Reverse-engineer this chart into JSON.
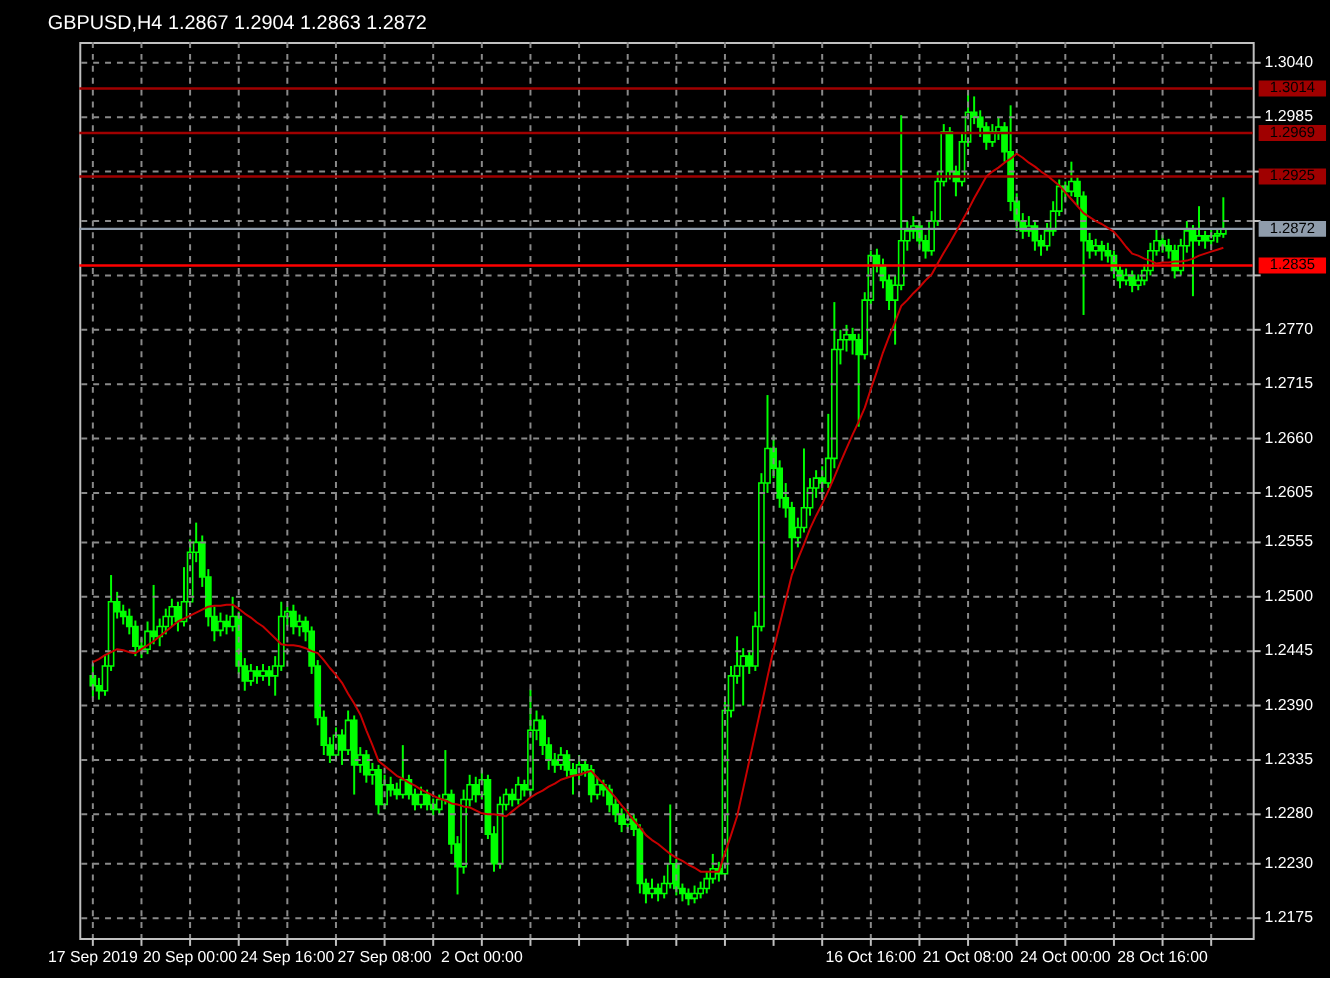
{
  "chart_data": {
    "type": "candlestick",
    "title": "GBPUSD,H4  1.2867 1.2904 1.2863 1.2872",
    "color": "#00ff00",
    "grid": true,
    "categories": [
      "17 Sep 2019",
      null,
      null,
      null,
      null,
      null,
      null,
      null,
      null,
      null,
      null,
      null,
      null,
      null,
      null,
      null,
      "20 Sep 00:00",
      null,
      null,
      null,
      null,
      null,
      null,
      null,
      null,
      null,
      null,
      null,
      null,
      null,
      null,
      null,
      "24 Sep 16:00",
      null,
      null,
      null,
      null,
      null,
      null,
      null,
      null,
      null,
      null,
      null,
      null,
      null,
      null,
      null,
      "27 Sep 08:00",
      null,
      null,
      null,
      null,
      null,
      null,
      null,
      null,
      null,
      null,
      null,
      null,
      null,
      null,
      null,
      "2 Oct 00:00",
      null,
      null,
      null,
      null,
      null,
      null,
      null,
      null,
      null,
      null,
      null,
      null,
      null,
      null,
      null,
      null,
      null,
      null,
      null,
      null,
      null,
      null,
      null,
      null,
      null,
      null,
      null,
      null,
      null,
      null,
      null,
      null,
      null,
      null,
      null,
      null,
      null,
      null,
      null,
      null,
      null,
      null,
      null,
      null,
      null,
      null,
      null,
      null,
      null,
      null,
      null,
      null,
      null,
      null,
      null,
      null,
      null,
      null,
      null,
      null,
      null,
      null,
      null,
      "16 Oct 16:00",
      null,
      null,
      null,
      null,
      null,
      null,
      null,
      null,
      null,
      null,
      null,
      null,
      null,
      null,
      null,
      "21 Oct 08:00",
      null,
      null,
      null,
      null,
      null,
      null,
      null,
      null,
      null,
      null,
      null,
      null,
      null,
      null,
      null,
      "24 Oct 00:00",
      null,
      null,
      null,
      null,
      null,
      null,
      null,
      null,
      null,
      null,
      null,
      null,
      null,
      null,
      null,
      "28 Oct 16:00",
      null,
      null,
      null,
      null,
      null,
      null,
      null,
      null,
      null,
      null
    ],
    "ohlc": [
      [
        1.242,
        1.2432,
        1.2398,
        1.241
      ],
      [
        1.241,
        1.2418,
        1.2396,
        1.2405
      ],
      [
        1.2405,
        1.244,
        1.24,
        1.243
      ],
      [
        1.243,
        1.2522,
        1.2425,
        1.2495
      ],
      [
        1.2495,
        1.2505,
        1.2478,
        1.2485
      ],
      [
        1.2485,
        1.2492,
        1.2472,
        1.248
      ],
      [
        1.248,
        1.2488,
        1.2462,
        1.247
      ],
      [
        1.247,
        1.2476,
        1.244,
        1.245
      ],
      [
        1.245,
        1.2458,
        1.2438,
        1.2447
      ],
      [
        1.2447,
        1.2475,
        1.2442,
        1.2465
      ],
      [
        1.2465,
        1.2512,
        1.2452,
        1.246
      ],
      [
        1.246,
        1.2478,
        1.245,
        1.247
      ],
      [
        1.247,
        1.2488,
        1.2462,
        1.248
      ],
      [
        1.248,
        1.2498,
        1.247,
        1.249
      ],
      [
        1.249,
        1.2495,
        1.2465,
        1.2475
      ],
      [
        1.2475,
        1.253,
        1.247,
        1.2495
      ],
      [
        1.2495,
        1.2558,
        1.249,
        1.2545
      ],
      [
        1.2545,
        1.2575,
        1.2535,
        1.2555
      ],
      [
        1.2555,
        1.2562,
        1.251,
        1.252
      ],
      [
        1.252,
        1.2528,
        1.247,
        1.248
      ],
      [
        1.248,
        1.249,
        1.2455,
        1.2466
      ],
      [
        1.2466,
        1.2484,
        1.246,
        1.2475
      ],
      [
        1.2475,
        1.2482,
        1.2462,
        1.247
      ],
      [
        1.247,
        1.25,
        1.2465,
        1.248
      ],
      [
        1.248,
        1.2485,
        1.2422,
        1.243
      ],
      [
        1.243,
        1.2438,
        1.2405,
        1.2415
      ],
      [
        1.2415,
        1.2432,
        1.241,
        1.2425
      ],
      [
        1.2425,
        1.243,
        1.2412,
        1.242
      ],
      [
        1.242,
        1.2432,
        1.2415,
        1.2425
      ],
      [
        1.2425,
        1.243,
        1.241,
        1.242
      ],
      [
        1.242,
        1.244,
        1.24,
        1.243
      ],
      [
        1.243,
        1.2495,
        1.2425,
        1.248
      ],
      [
        1.248,
        1.249,
        1.247,
        1.2485
      ],
      [
        1.2485,
        1.2492,
        1.2462,
        1.247
      ],
      [
        1.247,
        1.2482,
        1.246,
        1.2475
      ],
      [
        1.2475,
        1.248,
        1.2455,
        1.2465
      ],
      [
        1.2465,
        1.247,
        1.2422,
        1.243
      ],
      [
        1.243,
        1.2436,
        1.237,
        1.2378
      ],
      [
        1.2378,
        1.2385,
        1.234,
        1.235
      ],
      [
        1.235,
        1.2358,
        1.2332,
        1.234
      ],
      [
        1.234,
        1.2368,
        1.2335,
        1.236
      ],
      [
        1.236,
        1.2366,
        1.233,
        1.2345
      ],
      [
        1.2345,
        1.2385,
        1.234,
        1.2375
      ],
      [
        1.2375,
        1.238,
        1.23,
        1.233
      ],
      [
        1.233,
        1.2348,
        1.2322,
        1.234
      ],
      [
        1.234,
        1.2345,
        1.2312,
        1.232
      ],
      [
        1.232,
        1.2332,
        1.231,
        1.2325
      ],
      [
        1.2325,
        1.233,
        1.228,
        1.229
      ],
      [
        1.229,
        1.232,
        1.2285,
        1.231
      ],
      [
        1.231,
        1.2318,
        1.2298,
        1.2305
      ],
      [
        1.2305,
        1.2312,
        1.2295,
        1.23
      ],
      [
        1.23,
        1.235,
        1.2296,
        1.2315
      ],
      [
        1.2315,
        1.232,
        1.2295,
        1.23
      ],
      [
        1.23,
        1.2306,
        1.2284,
        1.229
      ],
      [
        1.229,
        1.2308,
        1.2286,
        1.23
      ],
      [
        1.23,
        1.2305,
        1.2284,
        1.229
      ],
      [
        1.229,
        1.2296,
        1.2278,
        1.2285
      ],
      [
        1.2285,
        1.23,
        1.228,
        1.2295
      ],
      [
        1.2295,
        1.2345,
        1.229,
        1.23
      ],
      [
        1.23,
        1.2305,
        1.224,
        1.225
      ],
      [
        1.225,
        1.2258,
        1.2199,
        1.2227
      ],
      [
        1.2227,
        1.2305,
        1.222,
        1.2295
      ],
      [
        1.2295,
        1.232,
        1.2288,
        1.231
      ],
      [
        1.231,
        1.2318,
        1.2292,
        1.23
      ],
      [
        1.23,
        1.2325,
        1.2295,
        1.2315
      ],
      [
        1.2315,
        1.232,
        1.2255,
        1.226
      ],
      [
        1.226,
        1.2268,
        1.2222,
        1.223
      ],
      [
        1.223,
        1.2298,
        1.2225,
        1.229
      ],
      [
        1.229,
        1.2306,
        1.2284,
        1.23
      ],
      [
        1.23,
        1.2306,
        1.2288,
        1.2295
      ],
      [
        1.2295,
        1.2318,
        1.229,
        1.231
      ],
      [
        1.231,
        1.2315,
        1.2298,
        1.2305
      ],
      [
        1.2305,
        1.2406,
        1.23,
        1.2365
      ],
      [
        1.2365,
        1.2385,
        1.2355,
        1.2375
      ],
      [
        1.2375,
        1.238,
        1.234,
        1.235
      ],
      [
        1.235,
        1.2358,
        1.2325,
        1.2335
      ],
      [
        1.2335,
        1.2342,
        1.2322,
        1.233
      ],
      [
        1.233,
        1.2348,
        1.2325,
        1.234
      ],
      [
        1.234,
        1.2345,
        1.2318,
        1.2325
      ],
      [
        1.2325,
        1.2332,
        1.23,
        1.232
      ],
      [
        1.232,
        1.234,
        1.2315,
        1.233
      ],
      [
        1.233,
        1.2336,
        1.2318,
        1.2325
      ],
      [
        1.2325,
        1.233,
        1.2292,
        1.23
      ],
      [
        1.23,
        1.2318,
        1.2295,
        1.231
      ],
      [
        1.231,
        1.2315,
        1.2298,
        1.2305
      ],
      [
        1.2305,
        1.231,
        1.2282,
        1.229
      ],
      [
        1.229,
        1.2296,
        1.2272,
        1.228
      ],
      [
        1.228,
        1.2286,
        1.2262,
        1.227
      ],
      [
        1.227,
        1.2285,
        1.2265,
        1.2275
      ],
      [
        1.2275,
        1.228,
        1.2258,
        1.2265
      ],
      [
        1.2265,
        1.227,
        1.22,
        1.221
      ],
      [
        1.221,
        1.2215,
        1.219,
        1.22
      ],
      [
        1.22,
        1.2215,
        1.2195,
        1.2205
      ],
      [
        1.2205,
        1.221,
        1.2192,
        1.22
      ],
      [
        1.22,
        1.2218,
        1.2195,
        1.221
      ],
      [
        1.221,
        1.229,
        1.2205,
        1.223
      ],
      [
        1.223,
        1.2235,
        1.2198,
        1.2205
      ],
      [
        1.2205,
        1.221,
        1.2192,
        1.22
      ],
      [
        1.22,
        1.2205,
        1.2188,
        1.2195
      ],
      [
        1.2195,
        1.2208,
        1.219,
        1.22
      ],
      [
        1.22,
        1.2212,
        1.2195,
        1.2205
      ],
      [
        1.2205,
        1.2222,
        1.22,
        1.2215
      ],
      [
        1.2215,
        1.224,
        1.221,
        1.2225
      ],
      [
        1.2225,
        1.2232,
        1.2212,
        1.222
      ],
      [
        1.222,
        1.2395,
        1.2215,
        1.2385
      ],
      [
        1.2385,
        1.243,
        1.2378,
        1.242
      ],
      [
        1.242,
        1.246,
        1.2412,
        1.243
      ],
      [
        1.243,
        1.2448,
        1.239,
        1.244
      ],
      [
        1.244,
        1.2446,
        1.2422,
        1.243
      ],
      [
        1.243,
        1.2485,
        1.2425,
        1.247
      ],
      [
        1.247,
        1.2625,
        1.2465,
        1.2615
      ],
      [
        1.2615,
        1.2704,
        1.2605,
        1.265
      ],
      [
        1.265,
        1.2662,
        1.262,
        1.263
      ],
      [
        1.263,
        1.2638,
        1.259,
        1.26
      ],
      [
        1.26,
        1.2615,
        1.258,
        1.259
      ],
      [
        1.259,
        1.2596,
        1.2528,
        1.256
      ],
      [
        1.256,
        1.258,
        1.255,
        1.257
      ],
      [
        1.257,
        1.265,
        1.2565,
        1.259
      ],
      [
        1.259,
        1.262,
        1.2582,
        1.261
      ],
      [
        1.261,
        1.2628,
        1.26,
        1.262
      ],
      [
        1.262,
        1.2632,
        1.26,
        1.2615
      ],
      [
        1.2615,
        1.2685,
        1.261,
        1.264
      ],
      [
        1.264,
        1.2798,
        1.263,
        1.275
      ],
      [
        1.275,
        1.277,
        1.2735,
        1.276
      ],
      [
        1.276,
        1.2775,
        1.2748,
        1.2765
      ],
      [
        1.2765,
        1.2772,
        1.2745,
        1.276
      ],
      [
        1.276,
        1.2766,
        1.2672,
        1.2745
      ],
      [
        1.2745,
        1.2808,
        1.274,
        1.28
      ],
      [
        1.28,
        1.285,
        1.2795,
        1.2845
      ],
      [
        1.2845,
        1.2852,
        1.2828,
        1.2835
      ],
      [
        1.2835,
        1.2842,
        1.2812,
        1.282
      ],
      [
        1.282,
        1.2826,
        1.279,
        1.28
      ],
      [
        1.28,
        1.2825,
        1.2755,
        1.2815
      ],
      [
        1.2815,
        1.2987,
        1.281,
        1.286
      ],
      [
        1.286,
        1.288,
        1.285,
        1.287
      ],
      [
        1.287,
        1.2885,
        1.2862,
        1.2875
      ],
      [
        1.2875,
        1.288,
        1.2852,
        1.286
      ],
      [
        1.286,
        1.2866,
        1.2842,
        1.285
      ],
      [
        1.285,
        1.289,
        1.2845,
        1.288
      ],
      [
        1.288,
        1.293,
        1.2875,
        1.292
      ],
      [
        1.292,
        1.2978,
        1.2915,
        1.297
      ],
      [
        1.297,
        1.2975,
        1.2922,
        1.293
      ],
      [
        1.293,
        1.2936,
        1.2905,
        1.292
      ],
      [
        1.292,
        1.2968,
        1.2915,
        1.296
      ],
      [
        1.296,
        1.301,
        1.2955,
        1.299
      ],
      [
        1.299,
        1.3006,
        1.2978,
        1.2985
      ],
      [
        1.2985,
        1.2992,
        1.2965,
        1.2975
      ],
      [
        1.2975,
        1.298,
        1.2952,
        1.296
      ],
      [
        1.296,
        1.2978,
        1.2955,
        1.297
      ],
      [
        1.297,
        1.2985,
        1.2962,
        1.2975
      ],
      [
        1.2975,
        1.298,
        1.294,
        1.295
      ],
      [
        1.295,
        1.2997,
        1.289,
        1.29
      ],
      [
        1.29,
        1.2908,
        1.287,
        1.288
      ],
      [
        1.288,
        1.2888,
        1.2862,
        1.287
      ],
      [
        1.287,
        1.2885,
        1.2864,
        1.2875
      ],
      [
        1.2875,
        1.288,
        1.285,
        1.286
      ],
      [
        1.286,
        1.2866,
        1.2845,
        1.2855
      ],
      [
        1.2855,
        1.2878,
        1.285,
        1.287
      ],
      [
        1.287,
        1.29,
        1.2865,
        1.289
      ],
      [
        1.289,
        1.2922,
        1.2885,
        1.2915
      ],
      [
        1.2915,
        1.292,
        1.29,
        1.291
      ],
      [
        1.291,
        1.294,
        1.2905,
        1.292
      ],
      [
        1.292,
        1.2926,
        1.2895,
        1.2905
      ],
      [
        1.2905,
        1.291,
        1.2785,
        1.286
      ],
      [
        1.286,
        1.2868,
        1.2842,
        1.285
      ],
      [
        1.285,
        1.2862,
        1.2845,
        1.2855
      ],
      [
        1.2855,
        1.286,
        1.284,
        1.285
      ],
      [
        1.285,
        1.2858,
        1.2838,
        1.2845
      ],
      [
        1.2845,
        1.285,
        1.2822,
        1.283
      ],
      [
        1.283,
        1.2836,
        1.2812,
        1.282
      ],
      [
        1.282,
        1.2832,
        1.2815,
        1.2825
      ],
      [
        1.2825,
        1.283,
        1.2808,
        1.2815
      ],
      [
        1.2815,
        1.2826,
        1.281,
        1.282
      ],
      [
        1.282,
        1.2836,
        1.2815,
        1.283
      ],
      [
        1.283,
        1.2858,
        1.2825,
        1.285
      ],
      [
        1.285,
        1.2872,
        1.2845,
        1.286
      ],
      [
        1.286,
        1.2866,
        1.2848,
        1.2855
      ],
      [
        1.2855,
        1.2862,
        1.2842,
        1.285
      ],
      [
        1.285,
        1.2856,
        1.2822,
        1.283
      ],
      [
        1.283,
        1.2862,
        1.2825,
        1.2855
      ],
      [
        1.2855,
        1.288,
        1.2848,
        1.287
      ],
      [
        1.287,
        1.2876,
        1.2804,
        1.286
      ],
      [
        1.286,
        1.2895,
        1.2855,
        1.2865
      ],
      [
        1.2865,
        1.287,
        1.2852,
        1.286
      ],
      [
        1.286,
        1.2872,
        1.2855,
        1.2865
      ],
      [
        1.2865,
        1.2872,
        1.2858,
        1.2867
      ],
      [
        1.2867,
        1.2904,
        1.2863,
        1.2872
      ]
    ],
    "series": [
      {
        "type": "line",
        "color": "#c80000",
        "values": [
          1.2434,
          1.2437,
          1.2441,
          1.2444,
          1.2447,
          1.2446,
          1.2444,
          1.2443,
          1.2447,
          1.2451,
          1.2455,
          1.246,
          1.2465,
          1.247,
          1.2475,
          1.2478,
          1.2481,
          1.2484,
          1.2487,
          1.249,
          1.2491,
          1.2491,
          1.2492,
          1.2492,
          1.2488,
          1.2483,
          1.2479,
          1.2474,
          1.247,
          1.2464,
          1.2458,
          1.2452,
          1.2451,
          1.2451,
          1.245,
          1.2448,
          1.2445,
          1.2443,
          1.2436,
          1.2428,
          1.2421,
          1.2413,
          1.2402,
          1.2392,
          1.2381,
          1.2365,
          1.235,
          1.2334,
          1.2329,
          1.2324,
          1.2319,
          1.2316,
          1.2312,
          1.2309,
          1.2305,
          1.2302,
          1.2299,
          1.2296,
          1.2294,
          1.2291,
          1.229,
          1.2288,
          1.2287,
          1.2284,
          1.2281,
          1.228,
          1.228,
          1.2279,
          1.2278,
          1.2283,
          1.2288,
          1.2292,
          1.2297,
          1.2301,
          1.2304,
          1.2308,
          1.2311,
          1.2315,
          1.2317,
          1.2319,
          1.232,
          1.2322,
          1.2324,
          1.2317,
          1.2311,
          1.2304,
          1.2297,
          1.2289,
          1.2282,
          1.2274,
          1.2267,
          1.2259,
          1.2254,
          1.225,
          1.2245,
          1.224,
          1.2236,
          1.2233,
          1.2229,
          1.2226,
          1.2222,
          1.2222,
          1.2222,
          1.2222,
          1.2241,
          1.2259,
          1.2278,
          1.2306,
          1.2334,
          1.2362,
          1.239,
          1.2419,
          1.2447,
          1.2472,
          1.2497,
          1.2522,
          1.2538,
          1.2553,
          1.2569,
          1.2582,
          1.2594,
          1.2607,
          1.2621,
          1.2636,
          1.265,
          1.2664,
          1.2677,
          1.2691,
          1.271,
          1.2728,
          1.2747,
          1.2763,
          1.2778,
          1.2794,
          1.28,
          1.2807,
          1.2813,
          1.282,
          1.2826,
          1.2837,
          1.2848,
          1.2858,
          1.2869,
          1.288,
          1.2891,
          1.2903,
          1.2914,
          1.2925,
          1.293,
          1.2934,
          1.2939,
          1.2943,
          1.2948,
          1.2944,
          1.2939,
          1.2935,
          1.293,
          1.2926,
          1.2921,
          1.2916,
          1.2909,
          1.2902,
          1.2895,
          1.2888,
          1.2884,
          1.288,
          1.2877,
          1.2873,
          1.2869,
          1.2862,
          1.2854,
          1.2847,
          1.2845,
          1.2842,
          1.284,
          1.2837,
          1.2838,
          1.2838,
          1.2839,
          1.2839,
          1.284,
          1.2842,
          1.2845,
          1.2847,
          1.2849,
          1.2851,
          1.2853
        ]
      }
    ],
    "ylim": [
      1.2155,
      1.3061
    ],
    "yticks": [
      {
        "value": 1.304,
        "label": "1.3040"
      },
      {
        "value": 1.2985,
        "label": "1.2985"
      },
      {
        "value": 1.293,
        "label": null
      },
      {
        "value": 1.288,
        "label": null
      },
      {
        "value": 1.2825,
        "label": null
      },
      {
        "value": 1.277,
        "label": "1.2770"
      },
      {
        "value": 1.2715,
        "label": "1.2715"
      },
      {
        "value": 1.266,
        "label": "1.2660"
      },
      {
        "value": 1.2605,
        "label": "1.2605"
      },
      {
        "value": 1.2555,
        "label": "1.2555"
      },
      {
        "value": 1.25,
        "label": "1.2500"
      },
      {
        "value": 1.2445,
        "label": "1.2445"
      },
      {
        "value": 1.239,
        "label": "1.2390"
      },
      {
        "value": 1.2335,
        "label": "1.2335"
      },
      {
        "value": 1.228,
        "label": "1.2280"
      },
      {
        "value": 1.223,
        "label": "1.2230"
      },
      {
        "value": 1.2175,
        "label": "1.2175"
      }
    ],
    "ref_lines": [
      {
        "axis": "y",
        "value": 1.3014,
        "label": "1.3014",
        "color": "#a00000"
      },
      {
        "axis": "y",
        "value": 1.2969,
        "label": "1.2969",
        "color": "#a00000"
      },
      {
        "axis": "y",
        "value": 1.2925,
        "label": "1.2925",
        "color": "#a00000"
      },
      {
        "axis": "y",
        "value": 1.2872,
        "label": "1.2872",
        "color": "#8f9cab"
      },
      {
        "axis": "y",
        "value": 1.2835,
        "label": "1.2835",
        "color": "#ff0000"
      }
    ]
  }
}
